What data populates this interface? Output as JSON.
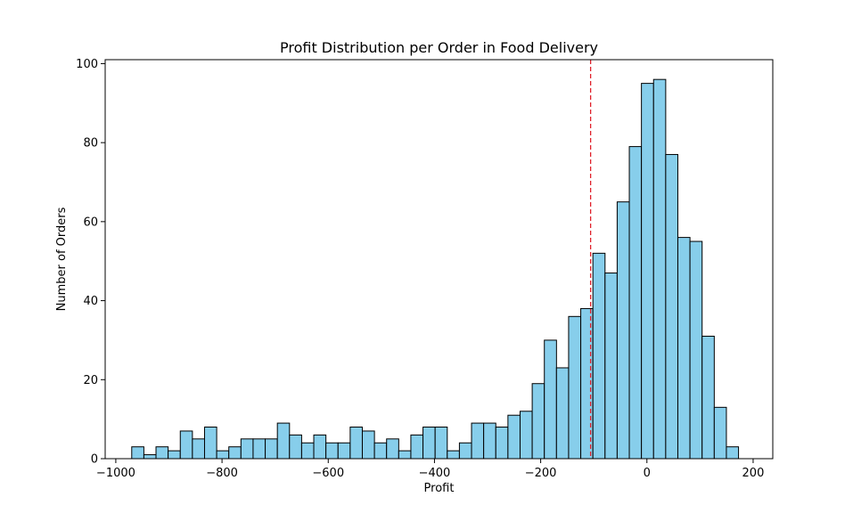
{
  "chart_data": {
    "type": "bar",
    "title": "Profit Distribution per Order in Food Delivery",
    "xlabel": "Profit",
    "ylabel": "Number of Orders",
    "xlim": [
      -1020,
      237
    ],
    "ylim": [
      0,
      101
    ],
    "x_ticks": [
      -1000,
      -800,
      -600,
      -400,
      -200,
      0,
      200
    ],
    "x_tick_labels": [
      "−1000",
      "−800",
      "−600",
      "−400",
      "−200",
      "0",
      "200"
    ],
    "y_ticks": [
      0,
      20,
      40,
      60,
      80,
      100
    ],
    "y_tick_labels": [
      "0",
      "20",
      "40",
      "60",
      "80",
      "100"
    ],
    "bin_start": -970,
    "bin_width": 22.85,
    "counts": [
      3,
      1,
      3,
      2,
      7,
      5,
      8,
      2,
      3,
      5,
      5,
      5,
      9,
      6,
      4,
      6,
      4,
      4,
      8,
      7,
      4,
      5,
      2,
      6,
      8,
      8,
      2,
      4,
      9,
      9,
      8,
      11,
      12,
      19,
      30,
      23,
      36,
      38,
      52,
      47,
      65,
      79,
      95,
      96,
      77,
      56,
      55,
      31,
      13,
      3
    ],
    "bar_color": "#87CEEB",
    "edge_color": "#000000",
    "mean_line": {
      "x": -106,
      "color": "#E0202A",
      "style": "dashed"
    },
    "grid": false,
    "legend": "none"
  }
}
